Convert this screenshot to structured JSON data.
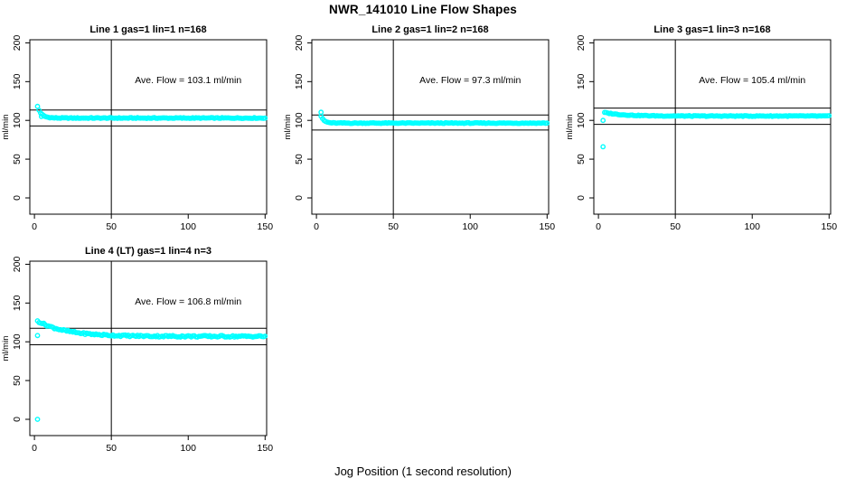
{
  "figure": {
    "title": "NWR_141010  Line Flow Shapes",
    "xlabel": "Jog Position (1 second resolution)",
    "background": "#FFFFFF",
    "axis_color": "#000000",
    "marker_color": "#00FFFF"
  },
  "chart_data": [
    {
      "type": "scatter",
      "title": "Line 1 gas=1 lin=1 n=168",
      "annotation": "Ave. Flow =  103.1  ml/min",
      "annotation_pos": [
        100,
        148
      ],
      "ave_flow": 103.1,
      "ref_lines": [
        113.4,
        92.8
      ],
      "vline_x": 50,
      "x_ticks": [
        0,
        50,
        100,
        150
      ],
      "y_ticks": [
        0,
        50,
        100,
        150,
        200
      ],
      "xlim": [
        -3,
        151
      ],
      "ylim": [
        -21,
        204
      ],
      "ylabel": "ml/min",
      "marker_color": "#00FFFF",
      "series_spec": {
        "baseline": 103.0,
        "amplitude": 15,
        "x0": 2,
        "tau": 2.5,
        "x_start": 2,
        "x_end": 150,
        "noise": 0.5,
        "seed": 1
      },
      "outliers": [
        [
          4.5,
          105
        ]
      ]
    },
    {
      "type": "scatter",
      "title": "Line 2 gas=1 lin=2 n=168",
      "annotation": "Ave. Flow =  97.3  ml/min",
      "annotation_pos": [
        100,
        148
      ],
      "ave_flow": 97.3,
      "ref_lines": [
        107.0,
        87.6
      ],
      "vline_x": 50,
      "x_ticks": [
        0,
        50,
        100,
        150
      ],
      "y_ticks": [
        0,
        50,
        100,
        150,
        200
      ],
      "xlim": [
        -3,
        151
      ],
      "ylim": [
        -21,
        204
      ],
      "ylabel": "ml/min",
      "marker_color": "#00FFFF",
      "series_spec": {
        "baseline": 96.5,
        "amplitude": 9,
        "x0": 3,
        "tau": 2.0,
        "x_start": 3,
        "x_end": 150,
        "noise": 0.5,
        "seed": 2
      },
      "outliers": [
        [
          3,
          110.5
        ]
      ]
    },
    {
      "type": "scatter",
      "title": "Line 3 gas=1 lin=3 n=168",
      "annotation": "Ave. Flow =  105.4  ml/min",
      "annotation_pos": [
        100,
        148
      ],
      "ave_flow": 105.4,
      "ref_lines": [
        115.9,
        94.9
      ],
      "vline_x": 50,
      "x_ticks": [
        0,
        50,
        100,
        150
      ],
      "y_ticks": [
        0,
        50,
        100,
        150,
        200
      ],
      "xlim": [
        -3,
        151
      ],
      "ylim": [
        -21,
        204
      ],
      "ylabel": "ml/min",
      "marker_color": "#00FFFF",
      "series_spec": {
        "baseline": 105.6,
        "amplitude": 4.5,
        "x0": 4,
        "tau": 12,
        "x_start": 4,
        "x_end": 150,
        "noise": 0.5,
        "seed": 3
      },
      "outliers": [
        [
          3,
          100
        ],
        [
          3,
          66
        ]
      ]
    },
    {
      "type": "scatter",
      "title": "Line 4 (LT) gas=1 lin=4 n=3",
      "annotation": "Ave. Flow =  106.8  ml/min",
      "annotation_pos": [
        100,
        148
      ],
      "ave_flow": 106.8,
      "ref_lines": [
        117.5,
        96.1
      ],
      "vline_x": 50,
      "x_ticks": [
        0,
        50,
        100,
        150
      ],
      "y_ticks": [
        0,
        50,
        100,
        150,
        200
      ],
      "xlim": [
        -3,
        151
      ],
      "ylim": [
        -21,
        204
      ],
      "ylabel": "ml/min",
      "marker_color": "#00FFFF",
      "series_spec": {
        "baseline": 107.0,
        "amplitude": 20,
        "x0": 2,
        "tau": 18,
        "x_start": 2,
        "x_end": 150,
        "noise": 1.1,
        "seed": 4
      },
      "outliers": [
        [
          2,
          108
        ],
        [
          2,
          0
        ]
      ]
    }
  ]
}
